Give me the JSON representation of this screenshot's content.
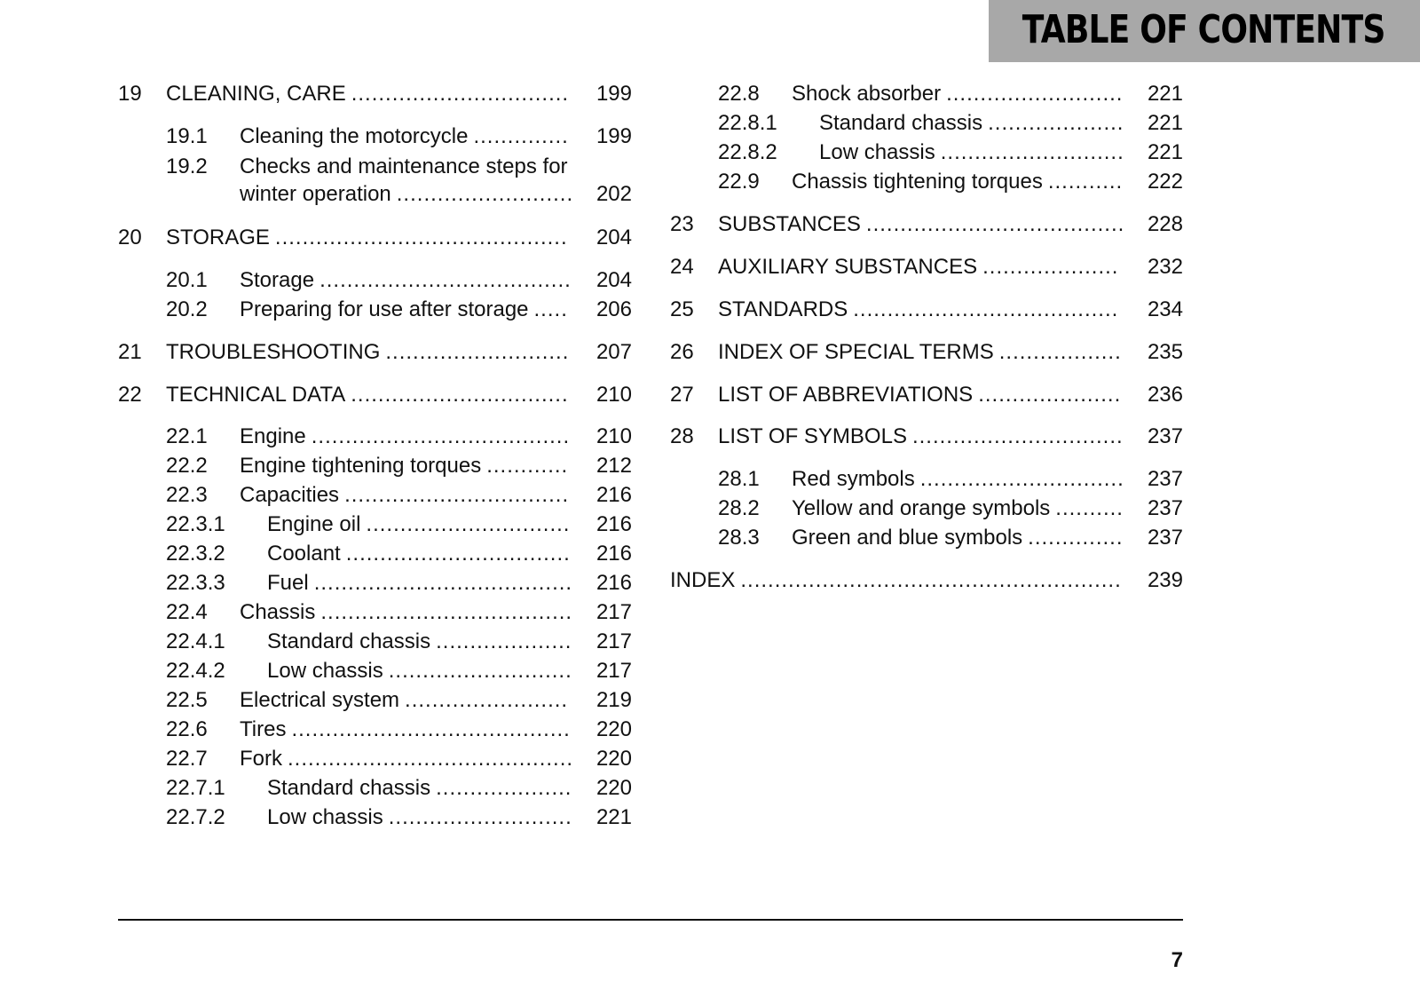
{
  "header": {
    "title": "TABLE OF CONTENTS",
    "background": "#a8a8a8"
  },
  "left_column": [
    {
      "num": "19",
      "title": "CLEANING, CARE",
      "page": "199",
      "level": 1
    },
    {
      "num": "19.1",
      "title": "Cleaning the motorcycle",
      "page": "199",
      "level": 2
    },
    {
      "num": "19.2",
      "title": "Checks and maintenance steps for",
      "level": 2
    },
    {
      "num": "",
      "title": "winter operation",
      "page": "202",
      "level": 2
    },
    {
      "num": "20",
      "title": "STORAGE",
      "page": "204",
      "level": 1
    },
    {
      "num": "20.1",
      "title": "Storage",
      "page": "204",
      "level": 2
    },
    {
      "num": "20.2",
      "title": "Preparing for use after storage",
      "page": "206",
      "level": 2
    },
    {
      "num": "21",
      "title": "TROUBLESHOOTING",
      "page": "207",
      "level": 1
    },
    {
      "num": "22",
      "title": "TECHNICAL DATA",
      "page": "210",
      "level": 1
    },
    {
      "num": "22.1",
      "title": "Engine",
      "page": "210",
      "level": 2
    },
    {
      "num": "22.2",
      "title": "Engine tightening torques",
      "page": "212",
      "level": 2
    },
    {
      "num": "22.3",
      "title": "Capacities",
      "page": "216",
      "level": 2
    },
    {
      "num": "22.3.1",
      "title": "Engine oil",
      "page": "216",
      "level": 3
    },
    {
      "num": "22.3.2",
      "title": "Coolant",
      "page": "216",
      "level": 3
    },
    {
      "num": "22.3.3",
      "title": "Fuel",
      "page": "216",
      "level": 3
    },
    {
      "num": "22.4",
      "title": "Chassis",
      "page": "217",
      "level": 2
    },
    {
      "num": "22.4.1",
      "title": "Standard chassis",
      "page": "217",
      "level": 3
    },
    {
      "num": "22.4.2",
      "title": "Low chassis",
      "page": "217",
      "level": 3
    },
    {
      "num": "22.5",
      "title": "Electrical system",
      "page": "219",
      "level": 2
    },
    {
      "num": "22.6",
      "title": "Tires",
      "page": "220",
      "level": 2
    },
    {
      "num": "22.7",
      "title": "Fork",
      "page": "220",
      "level": 2
    },
    {
      "num": "22.7.1",
      "title": "Standard chassis",
      "page": "220",
      "level": 3
    },
    {
      "num": "22.7.2",
      "title": "Low chassis",
      "page": "221",
      "level": 3
    }
  ],
  "right_column": [
    {
      "num": "22.8",
      "title": "Shock absorber",
      "page": "221",
      "level": 2
    },
    {
      "num": "22.8.1",
      "title": "Standard chassis",
      "page": "221",
      "level": 3
    },
    {
      "num": "22.8.2",
      "title": "Low chassis",
      "page": "221",
      "level": 3
    },
    {
      "num": "22.9",
      "title": "Chassis tightening torques",
      "page": "222",
      "level": 2
    },
    {
      "num": "23",
      "title": "SUBSTANCES",
      "page": "228",
      "level": 1
    },
    {
      "num": "24",
      "title": "AUXILIARY SUBSTANCES",
      "page": "232",
      "level": 1
    },
    {
      "num": "25",
      "title": "STANDARDS",
      "page": "234",
      "level": 1
    },
    {
      "num": "26",
      "title": "INDEX OF SPECIAL TERMS",
      "page": "235",
      "level": 1
    },
    {
      "num": "27",
      "title": "LIST OF ABBREVIATIONS",
      "page": "236",
      "level": 1
    },
    {
      "num": "28",
      "title": "LIST OF SYMBOLS",
      "page": "237",
      "level": 1
    },
    {
      "num": "28.1",
      "title": "Red symbols",
      "page": "237",
      "level": 2
    },
    {
      "num": "28.2",
      "title": "Yellow and orange symbols",
      "page": "237",
      "level": 2
    },
    {
      "num": "28.3",
      "title": "Green and blue symbols",
      "page": "237",
      "level": 2
    },
    {
      "num": "",
      "title": "INDEX",
      "page": "239",
      "level": 0
    }
  ],
  "footer": {
    "page_number": "7"
  }
}
